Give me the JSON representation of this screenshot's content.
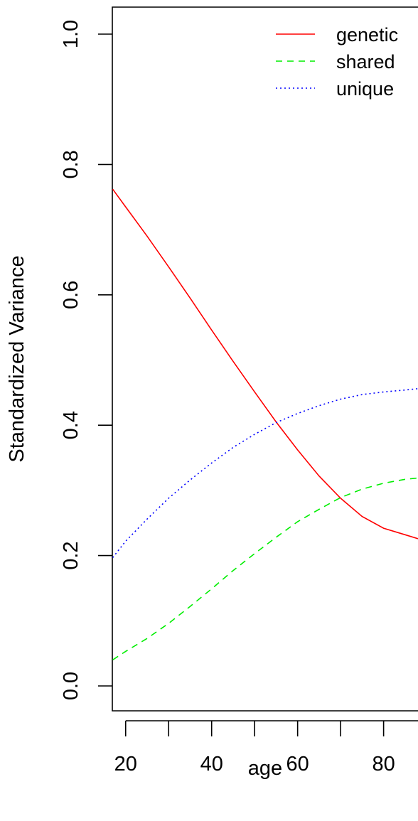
{
  "chart_data": {
    "type": "line",
    "title": "",
    "xlabel": "age",
    "ylabel": "Standardized Variance",
    "xlim": [
      16.9,
      88
    ],
    "ylim": [
      0,
      1
    ],
    "x_ticks": [
      20,
      30,
      40,
      50,
      60,
      70,
      80,
      90
    ],
    "x_tick_labels": [
      "20",
      "",
      "40",
      "",
      "60",
      "",
      "80",
      ""
    ],
    "y_ticks": [
      0.0,
      0.2,
      0.4,
      0.6,
      0.8,
      1.0
    ],
    "y_tick_labels": [
      "0.0",
      "0.2",
      "0.4",
      "0.6",
      "0.8",
      "1.0"
    ],
    "grid": false,
    "legend_position": "top-right",
    "x": [
      17,
      20,
      25,
      30,
      35,
      40,
      45,
      50,
      55,
      60,
      65,
      70,
      75,
      80,
      85,
      88
    ],
    "series": [
      {
        "name": "genetic",
        "color": "#ff0000",
        "dash": "solid",
        "values": [
          0.762,
          0.735,
          0.69,
          0.643,
          0.595,
          0.546,
          0.498,
          0.451,
          0.405,
          0.362,
          0.322,
          0.288,
          0.26,
          0.242,
          0.232,
          0.226
        ]
      },
      {
        "name": "shared",
        "color": "#00ee00",
        "dash": "dashed",
        "values": [
          0.04,
          0.053,
          0.073,
          0.096,
          0.122,
          0.149,
          0.177,
          0.203,
          0.228,
          0.252,
          0.271,
          0.289,
          0.302,
          0.311,
          0.317,
          0.319
        ]
      },
      {
        "name": "unique",
        "color": "#0000ff",
        "dash": "dotted",
        "values": [
          0.197,
          0.222,
          0.256,
          0.288,
          0.316,
          0.342,
          0.366,
          0.386,
          0.404,
          0.418,
          0.43,
          0.44,
          0.447,
          0.451,
          0.454,
          0.456
        ]
      }
    ]
  }
}
